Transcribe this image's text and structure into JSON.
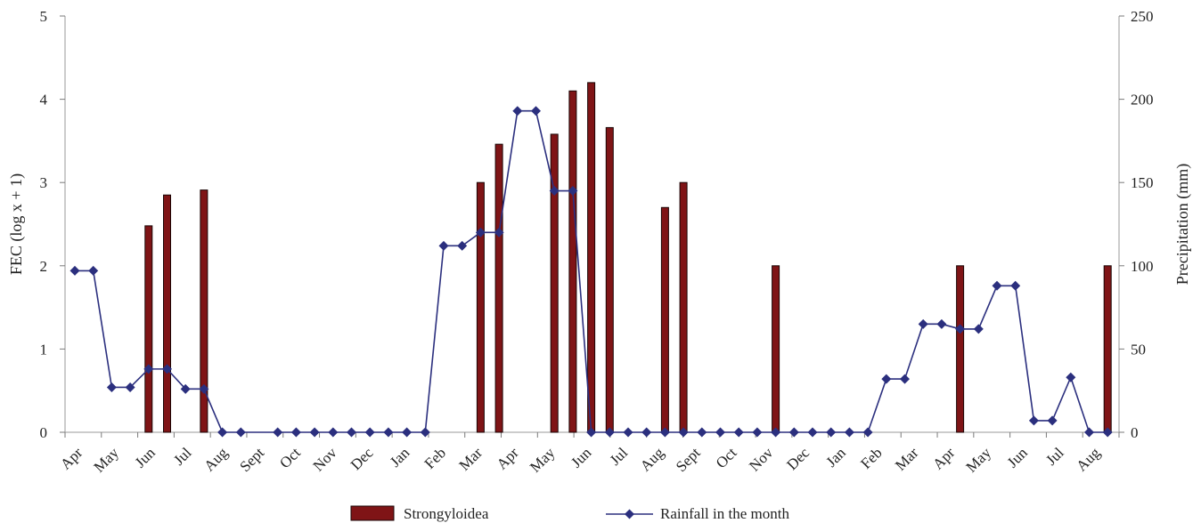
{
  "chart_data": {
    "type": "bar",
    "xlabel": "",
    "y_left": {
      "label": "FEC (log x + 1)",
      "lim": [
        0,
        5
      ],
      "ticks": [
        0,
        1,
        2,
        3,
        4,
        5
      ]
    },
    "y_right": {
      "label": "Precipitation (mm)",
      "lim": [
        0,
        250
      ],
      "ticks": [
        0,
        50,
        100,
        150,
        200,
        250
      ]
    },
    "x_tick_labels": [
      "Apr",
      "May",
      "Jun",
      "Jul",
      "Aug",
      "Sept",
      "Oct",
      "Nov",
      "Dec",
      "Jan",
      "Feb",
      "Mar",
      "Apr",
      "May",
      "Jun",
      "Jul",
      "Aug",
      "Sept",
      "Oct",
      "Nov",
      "Dec",
      "Jan",
      "Feb",
      "Mar",
      "Apr",
      "May",
      "Jun",
      "Jul",
      "Aug"
    ],
    "grid": false,
    "legend_position": "bottom",
    "series": [
      {
        "name": "Strongyloidea",
        "kind": "bar",
        "axis": "left",
        "color": "#7f1416",
        "points": [
          {
            "x": 4.0,
            "y": 2.48
          },
          {
            "x": 5.0,
            "y": 2.85
          },
          {
            "x": 7.0,
            "y": 2.91
          },
          {
            "x": 22.0,
            "y": 3.0
          },
          {
            "x": 23.0,
            "y": 3.46
          },
          {
            "x": 26.0,
            "y": 3.58
          },
          {
            "x": 27.0,
            "y": 4.1
          },
          {
            "x": 28.0,
            "y": 4.2
          },
          {
            "x": 29.0,
            "y": 3.66
          },
          {
            "x": 32.0,
            "y": 2.7
          },
          {
            "x": 33.0,
            "y": 3.0
          },
          {
            "x": 38.0,
            "y": 2.0
          },
          {
            "x": 48.0,
            "y": 2.0
          },
          {
            "x": 56.0,
            "y": 2.0
          }
        ]
      },
      {
        "name": "Rainfall in the month",
        "kind": "line",
        "axis": "right",
        "color": "#2b2f7e",
        "points": [
          {
            "x": 0.0,
            "y": 97
          },
          {
            "x": 1.0,
            "y": 97
          },
          {
            "x": 2.0,
            "y": 27
          },
          {
            "x": 3.0,
            "y": 27
          },
          {
            "x": 4.0,
            "y": 38
          },
          {
            "x": 5.0,
            "y": 38
          },
          {
            "x": 6.0,
            "y": 26
          },
          {
            "x": 7.0,
            "y": 26
          },
          {
            "x": 8.0,
            "y": 0
          },
          {
            "x": 9.0,
            "y": 0
          },
          {
            "x": 11.0,
            "y": 0
          },
          {
            "x": 12.0,
            "y": 0
          },
          {
            "x": 13.0,
            "y": 0
          },
          {
            "x": 14.0,
            "y": 0
          },
          {
            "x": 15.0,
            "y": 0
          },
          {
            "x": 16.0,
            "y": 0
          },
          {
            "x": 17.0,
            "y": 0
          },
          {
            "x": 18.0,
            "y": 0
          },
          {
            "x": 19.0,
            "y": 0
          },
          {
            "x": 20.0,
            "y": 112
          },
          {
            "x": 21.0,
            "y": 112
          },
          {
            "x": 22.0,
            "y": 120
          },
          {
            "x": 23.0,
            "y": 120
          },
          {
            "x": 24.0,
            "y": 193
          },
          {
            "x": 25.0,
            "y": 193
          },
          {
            "x": 26.0,
            "y": 145
          },
          {
            "x": 27.0,
            "y": 145
          },
          {
            "x": 28.0,
            "y": 0
          },
          {
            "x": 29.0,
            "y": 0
          },
          {
            "x": 30.0,
            "y": 0
          },
          {
            "x": 31.0,
            "y": 0
          },
          {
            "x": 32.0,
            "y": 0
          },
          {
            "x": 33.0,
            "y": 0
          },
          {
            "x": 34.0,
            "y": 0
          },
          {
            "x": 35.0,
            "y": 0
          },
          {
            "x": 36.0,
            "y": 0
          },
          {
            "x": 37.0,
            "y": 0
          },
          {
            "x": 38.0,
            "y": 0
          },
          {
            "x": 39.0,
            "y": 0
          },
          {
            "x": 40.0,
            "y": 0
          },
          {
            "x": 41.0,
            "y": 0
          },
          {
            "x": 42.0,
            "y": 0
          },
          {
            "x": 43.0,
            "y": 0
          },
          {
            "x": 44.0,
            "y": 32
          },
          {
            "x": 45.0,
            "y": 32
          },
          {
            "x": 46.0,
            "y": 65
          },
          {
            "x": 47.0,
            "y": 65
          },
          {
            "x": 48.0,
            "y": 62
          },
          {
            "x": 49.0,
            "y": 62
          },
          {
            "x": 50.0,
            "y": 88
          },
          {
            "x": 51.0,
            "y": 88
          },
          {
            "x": 52.0,
            "y": 7
          },
          {
            "x": 53.0,
            "y": 7
          },
          {
            "x": 54.0,
            "y": 33
          },
          {
            "x": 55.0,
            "y": 0
          },
          {
            "x": 56.0,
            "y": 0
          }
        ]
      }
    ],
    "legend": [
      {
        "label": "Strongyloidea",
        "marker": "bar",
        "color": "#7f1416"
      },
      {
        "label": "Rainfall in the month",
        "marker": "line-diamond",
        "color": "#2b2f7e"
      }
    ]
  }
}
